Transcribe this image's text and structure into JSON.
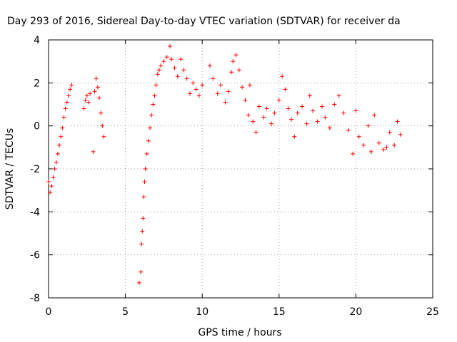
{
  "chart_data": {
    "type": "scatter",
    "title": "Day 293 of 2016, Sidereal Day-to-day VTEC variation (SDTVAR) for receiver da",
    "xlabel": "GPS time / hours",
    "ylabel": "SDTVAR / TECUs",
    "xlim": [
      0,
      25
    ],
    "ylim": [
      -8,
      4
    ],
    "xticks": [
      "0",
      "5",
      "10",
      "15",
      "20",
      "25"
    ],
    "yticks": [
      "-8",
      "-6",
      "-4",
      "-2",
      "0",
      "2",
      "4"
    ],
    "grid": true,
    "marker": "+",
    "color": "#ff0000",
    "series": [
      {
        "points": [
          [
            0.0,
            -2.6
          ],
          [
            0.1,
            -3.1
          ],
          [
            0.2,
            -2.8
          ],
          [
            0.3,
            -2.4
          ],
          [
            0.4,
            -2.0
          ],
          [
            0.5,
            -1.7
          ],
          [
            0.6,
            -1.3
          ],
          [
            0.7,
            -0.9
          ],
          [
            0.8,
            -0.5
          ],
          [
            0.9,
            -0.1
          ],
          [
            1.0,
            0.4
          ],
          [
            1.1,
            0.8
          ],
          [
            1.2,
            1.1
          ],
          [
            1.3,
            1.4
          ],
          [
            1.4,
            1.7
          ],
          [
            1.5,
            1.9
          ],
          [
            2.3,
            0.8
          ],
          [
            2.4,
            1.2
          ],
          [
            2.5,
            1.4
          ],
          [
            2.6,
            1.1
          ],
          [
            2.7,
            1.5
          ],
          [
            2.9,
            -1.2
          ],
          [
            3.0,
            1.6
          ],
          [
            3.1,
            2.2
          ],
          [
            3.2,
            1.8
          ],
          [
            3.3,
            1.3
          ],
          [
            3.4,
            0.6
          ],
          [
            3.5,
            0.0
          ],
          [
            3.6,
            -0.5
          ],
          [
            5.9,
            -7.3
          ],
          [
            6.0,
            -6.8
          ],
          [
            6.05,
            -5.5
          ],
          [
            6.1,
            -4.9
          ],
          [
            6.15,
            -4.3
          ],
          [
            6.2,
            -3.3
          ],
          [
            6.25,
            -2.6
          ],
          [
            6.3,
            -2.0
          ],
          [
            6.4,
            -1.3
          ],
          [
            6.5,
            -0.7
          ],
          [
            6.6,
            -0.1
          ],
          [
            6.7,
            0.5
          ],
          [
            6.8,
            1.0
          ],
          [
            6.9,
            1.4
          ],
          [
            7.0,
            1.9
          ],
          [
            7.1,
            2.4
          ],
          [
            7.2,
            2.6
          ],
          [
            7.3,
            2.8
          ],
          [
            7.5,
            3.0
          ],
          [
            7.7,
            3.2
          ],
          [
            7.9,
            3.7
          ],
          [
            8.0,
            3.1
          ],
          [
            8.2,
            2.7
          ],
          [
            8.4,
            2.3
          ],
          [
            8.6,
            3.1
          ],
          [
            8.8,
            2.6
          ],
          [
            9.0,
            2.2
          ],
          [
            9.2,
            1.5
          ],
          [
            9.4,
            2.0
          ],
          [
            9.6,
            1.7
          ],
          [
            9.8,
            1.4
          ],
          [
            10.0,
            1.9
          ],
          [
            10.5,
            2.8
          ],
          [
            10.7,
            2.2
          ],
          [
            11.0,
            1.5
          ],
          [
            11.2,
            1.9
          ],
          [
            11.5,
            1.1
          ],
          [
            11.7,
            1.6
          ],
          [
            11.9,
            2.5
          ],
          [
            12.0,
            3.0
          ],
          [
            12.2,
            3.3
          ],
          [
            12.4,
            2.6
          ],
          [
            12.6,
            1.8
          ],
          [
            12.8,
            1.2
          ],
          [
            13.0,
            0.5
          ],
          [
            13.1,
            1.9
          ],
          [
            13.3,
            0.2
          ],
          [
            13.5,
            -0.3
          ],
          [
            13.7,
            0.9
          ],
          [
            14.0,
            0.4
          ],
          [
            14.2,
            0.8
          ],
          [
            14.5,
            0.1
          ],
          [
            14.7,
            0.6
          ],
          [
            15.0,
            1.2
          ],
          [
            15.2,
            2.3
          ],
          [
            15.4,
            1.7
          ],
          [
            15.6,
            0.8
          ],
          [
            15.8,
            0.3
          ],
          [
            16.0,
            -0.5
          ],
          [
            16.2,
            0.6
          ],
          [
            16.5,
            0.9
          ],
          [
            16.8,
            0.1
          ],
          [
            17.0,
            1.4
          ],
          [
            17.2,
            0.7
          ],
          [
            17.5,
            0.2
          ],
          [
            17.8,
            0.9
          ],
          [
            18.0,
            0.4
          ],
          [
            18.3,
            -0.1
          ],
          [
            18.6,
            1.0
          ],
          [
            18.9,
            1.4
          ],
          [
            19.2,
            0.6
          ],
          [
            19.5,
            -0.2
          ],
          [
            19.8,
            -1.3
          ],
          [
            20.0,
            0.7
          ],
          [
            20.2,
            -0.5
          ],
          [
            20.5,
            -0.9
          ],
          [
            20.8,
            0.0
          ],
          [
            21.0,
            -1.2
          ],
          [
            21.2,
            0.5
          ],
          [
            21.5,
            -0.8
          ],
          [
            21.8,
            -1.1
          ],
          [
            22.0,
            -1.0
          ],
          [
            22.2,
            -0.3
          ],
          [
            22.5,
            -0.9
          ],
          [
            22.7,
            0.2
          ],
          [
            22.9,
            -0.4
          ]
        ]
      }
    ]
  }
}
